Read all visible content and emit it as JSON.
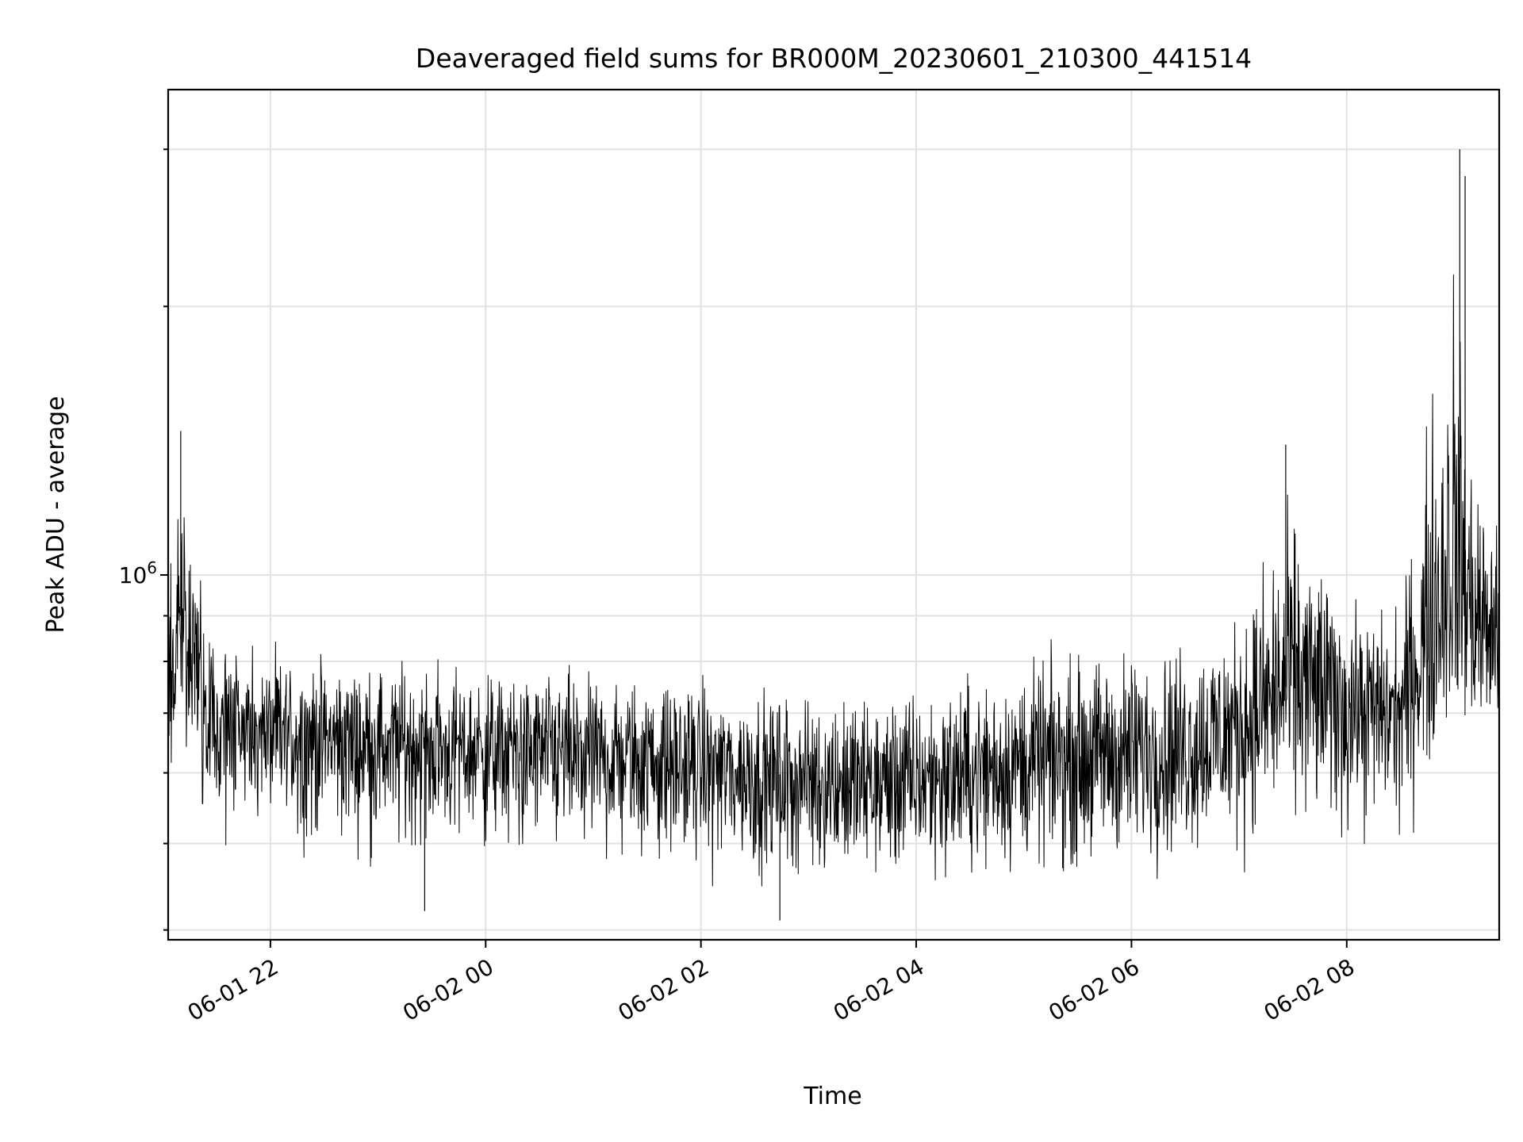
{
  "chart_data": {
    "type": "line",
    "title": "Deaveraged field sums for BR000M_20230601_210300_441514",
    "xlabel": "Time",
    "ylabel": "Peak ADU - average",
    "yscale": "log",
    "xlim": [
      "2023-06-01 21:03",
      "2023-06-02 09:25"
    ],
    "ylim": [
      390000,
      3500000
    ],
    "grid": true,
    "color": "#000000",
    "x_ticks": [
      "06-01 22",
      "06-02 00",
      "06-02 02",
      "06-02 04",
      "06-02 06",
      "06-02 08"
    ],
    "y_ticks": [
      {
        "base": "10",
        "exp": "6"
      }
    ],
    "series": [
      {
        "x": [
          "2023-06-01 21:03",
          "2023-06-01 21:10",
          "2023-06-01 21:15",
          "2023-06-01 21:20",
          "2023-06-01 21:25",
          "2023-06-01 21:30",
          "2023-06-01 22:00",
          "2023-06-01 22:30",
          "2023-06-01 23:00",
          "2023-06-01 23:30",
          "2023-06-02 00:00",
          "2023-06-02 00:30",
          "2023-06-02 01:00",
          "2023-06-02 01:30",
          "2023-06-02 02:00",
          "2023-06-02 02:30",
          "2023-06-02 03:00",
          "2023-06-02 03:30",
          "2023-06-02 04:00",
          "2023-06-02 04:30",
          "2023-06-02 05:00",
          "2023-06-02 05:30",
          "2023-06-02 06:00",
          "2023-06-02 06:30",
          "2023-06-02 07:00",
          "2023-06-02 07:30",
          "2023-06-02 08:00",
          "2023-06-02 08:30",
          "2023-06-02 09:00",
          "2023-06-02 09:10",
          "2023-06-02 09:25"
        ],
        "y": [
          840000,
          900000,
          860000,
          820000,
          700000,
          680000,
          670000,
          660000,
          650000,
          645000,
          640000,
          635000,
          630000,
          625000,
          615000,
          600000,
          595000,
          590000,
          590000,
          600000,
          615000,
          625000,
          635000,
          640000,
          680000,
          760000,
          720000,
          700000,
          1050000,
          920000,
          860000
        ],
        "min": [
          540000,
          520000,
          500000,
          490000,
          480000,
          470000,
          470000,
          460000,
          455000,
          450000,
          450000,
          445000,
          440000,
          440000,
          435000,
          420000,
          415000,
          410000,
          420000,
          425000,
          430000,
          430000,
          430000,
          440000,
          445000,
          470000,
          460000,
          470000,
          560000,
          540000,
          540000
        ],
        "max": [
          1250000,
          1450000,
          1350000,
          1150000,
          900000,
          880000,
          860000,
          850000,
          845000,
          840000,
          830000,
          830000,
          820000,
          810000,
          800000,
          790000,
          780000,
          780000,
          800000,
          830000,
          860000,
          880000,
          900000,
          920000,
          980000,
          1350000,
          1000000,
          980000,
          2900000,
          1500000,
          1200000
        ],
        "spikes": [
          {
            "x": "2023-06-01 21:10",
            "y": 1450000
          },
          {
            "x": "2023-06-02 07:26",
            "y": 1400000
          },
          {
            "x": "2023-06-02 09:03",
            "y": 3000000
          },
          {
            "x": "2023-06-02 09:06",
            "y": 2800000
          },
          {
            "x": "2023-06-02 02:44",
            "y": 410000
          },
          {
            "x": "2023-06-01 23:26",
            "y": 420000
          }
        ]
      }
    ]
  }
}
